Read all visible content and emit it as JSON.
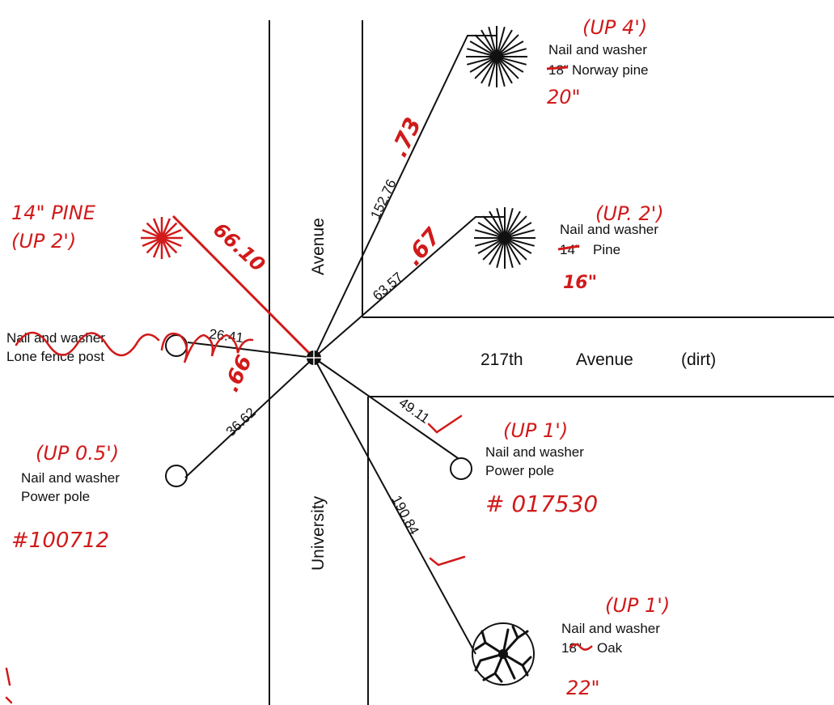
{
  "streets": {
    "university_top": "Avenue",
    "university_bottom": "University",
    "ave217_name": "217th",
    "ave217_word": "Avenue",
    "ave217_note": "(dirt)"
  },
  "references": [
    {
      "id": "norway",
      "line1": "Nail and washer",
      "line2_struck": "18\"",
      "line2": "Norway pine",
      "distance": "152.76",
      "red_up": "(UP 4')",
      "red_dist": ".73",
      "red_size": "20\""
    },
    {
      "id": "pine",
      "line1": "Nail and washer",
      "line2_struck": "14\"",
      "line2": "Pine",
      "distance": "63.57",
      "red_up": "(UP. 2')",
      "red_dist": ".67",
      "red_size": "16\""
    },
    {
      "id": "fence",
      "line1": "Nail and washer",
      "line2": "Lone fence post",
      "distance": "26.41"
    },
    {
      "id": "pole_west",
      "line1": "Nail and washer",
      "line2": "Power pole",
      "distance": "36.62",
      "red_up": "(UP 0.5')",
      "red_dist": ".66",
      "red_tag": "#100712"
    },
    {
      "id": "pole_east",
      "line1": "Nail and washer",
      "line2": "Power pole",
      "distance": "49.11",
      "red_up": "(UP 1')",
      "red_tag": "# 017530"
    },
    {
      "id": "oak",
      "line1": "Nail and washer",
      "line2_struck": "18\"",
      "line2": "Oak",
      "distance": "190.84",
      "red_up": "(UP 1')",
      "red_size": "22\""
    },
    {
      "id": "red_pine",
      "red_label": "14\" PINE",
      "red_up": "(UP 2')",
      "red_dist": "66.10"
    }
  ],
  "colors": {
    "ink": "#111111",
    "redline": "#d11a1a"
  }
}
